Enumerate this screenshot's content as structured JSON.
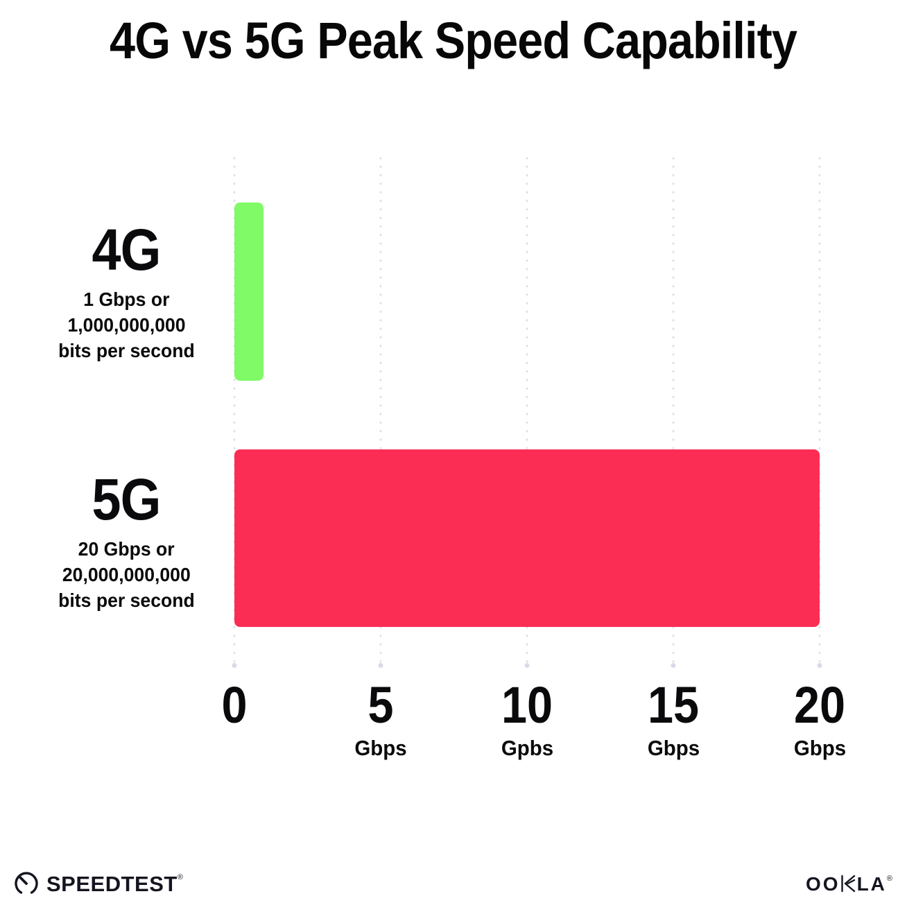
{
  "page": {
    "background": "#ffffff"
  },
  "title": "4G vs 5G Peak Speed Capability",
  "chart_data": {
    "type": "bar",
    "orientation": "horizontal",
    "title": "4G vs 5G Peak Speed Capability",
    "xlabel": "Gbps",
    "xlim": [
      0,
      20
    ],
    "grid": {
      "style": "dotted-vertical",
      "color": "#dfdfeb",
      "positions": [
        0,
        5,
        10,
        15,
        20
      ]
    },
    "bars": [
      {
        "label": "4G",
        "value": 1,
        "color": "#80FA66",
        "desc_lines": [
          "1 Gbps or",
          "1,000,000,000",
          "bits per second"
        ]
      },
      {
        "label": "5G",
        "value": 20,
        "color": "#FC2D55",
        "desc_lines": [
          "20 Gbps or",
          "20,000,000,000",
          "bits per second"
        ]
      }
    ],
    "x_ticks": [
      {
        "value": "0",
        "unit": ""
      },
      {
        "value": "5",
        "unit": "Gbps"
      },
      {
        "value": "10",
        "unit": "Gpbs"
      },
      {
        "value": "15",
        "unit": "Gbps"
      },
      {
        "value": "20",
        "unit": "Gbps"
      }
    ]
  },
  "footer": {
    "speedtest": {
      "label": "SPEEDTEST",
      "trademark": "®",
      "icon": "speedometer-icon"
    },
    "ookla": {
      "label": "OOKLA",
      "label_left": "OO",
      "label_right": "LA",
      "trademark": "®",
      "icon": "ookla-k-icon"
    }
  }
}
